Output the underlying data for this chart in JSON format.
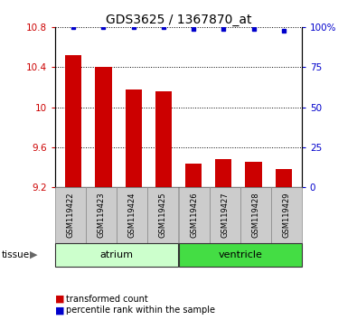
{
  "title": "GDS3625 / 1367870_at",
  "samples": [
    "GSM119422",
    "GSM119423",
    "GSM119424",
    "GSM119425",
    "GSM119426",
    "GSM119427",
    "GSM119428",
    "GSM119429"
  ],
  "bar_values": [
    10.52,
    10.4,
    10.18,
    10.16,
    9.44,
    9.48,
    9.45,
    9.38
  ],
  "percentile_values": [
    100,
    100,
    100,
    100,
    99,
    99,
    99,
    98
  ],
  "ylim_left": [
    9.2,
    10.8
  ],
  "ylim_right": [
    0,
    100
  ],
  "yticks_left": [
    9.2,
    9.6,
    10.0,
    10.4,
    10.8
  ],
  "ytick_labels_left": [
    "9.2",
    "9.6",
    "10",
    "10.4",
    "10.8"
  ],
  "yticks_right": [
    0,
    25,
    50,
    75,
    100
  ],
  "ytick_labels_right": [
    "0",
    "25",
    "50",
    "75",
    "100%"
  ],
  "grid_values": [
    9.6,
    10.0,
    10.4,
    10.8
  ],
  "bar_color": "#cc0000",
  "dot_color": "#0000cc",
  "bar_width": 0.55,
  "groups": [
    {
      "label": "atrium",
      "indices": [
        0,
        1,
        2,
        3
      ],
      "color": "#ccffcc"
    },
    {
      "label": "ventricle",
      "indices": [
        4,
        5,
        6,
        7
      ],
      "color": "#44dd44"
    }
  ],
  "legend_items": [
    {
      "label": "transformed count",
      "color": "#cc0000"
    },
    {
      "label": "percentile rank within the sample",
      "color": "#0000cc"
    }
  ],
  "tissue_label": "tissue",
  "background_color": "#ffffff"
}
